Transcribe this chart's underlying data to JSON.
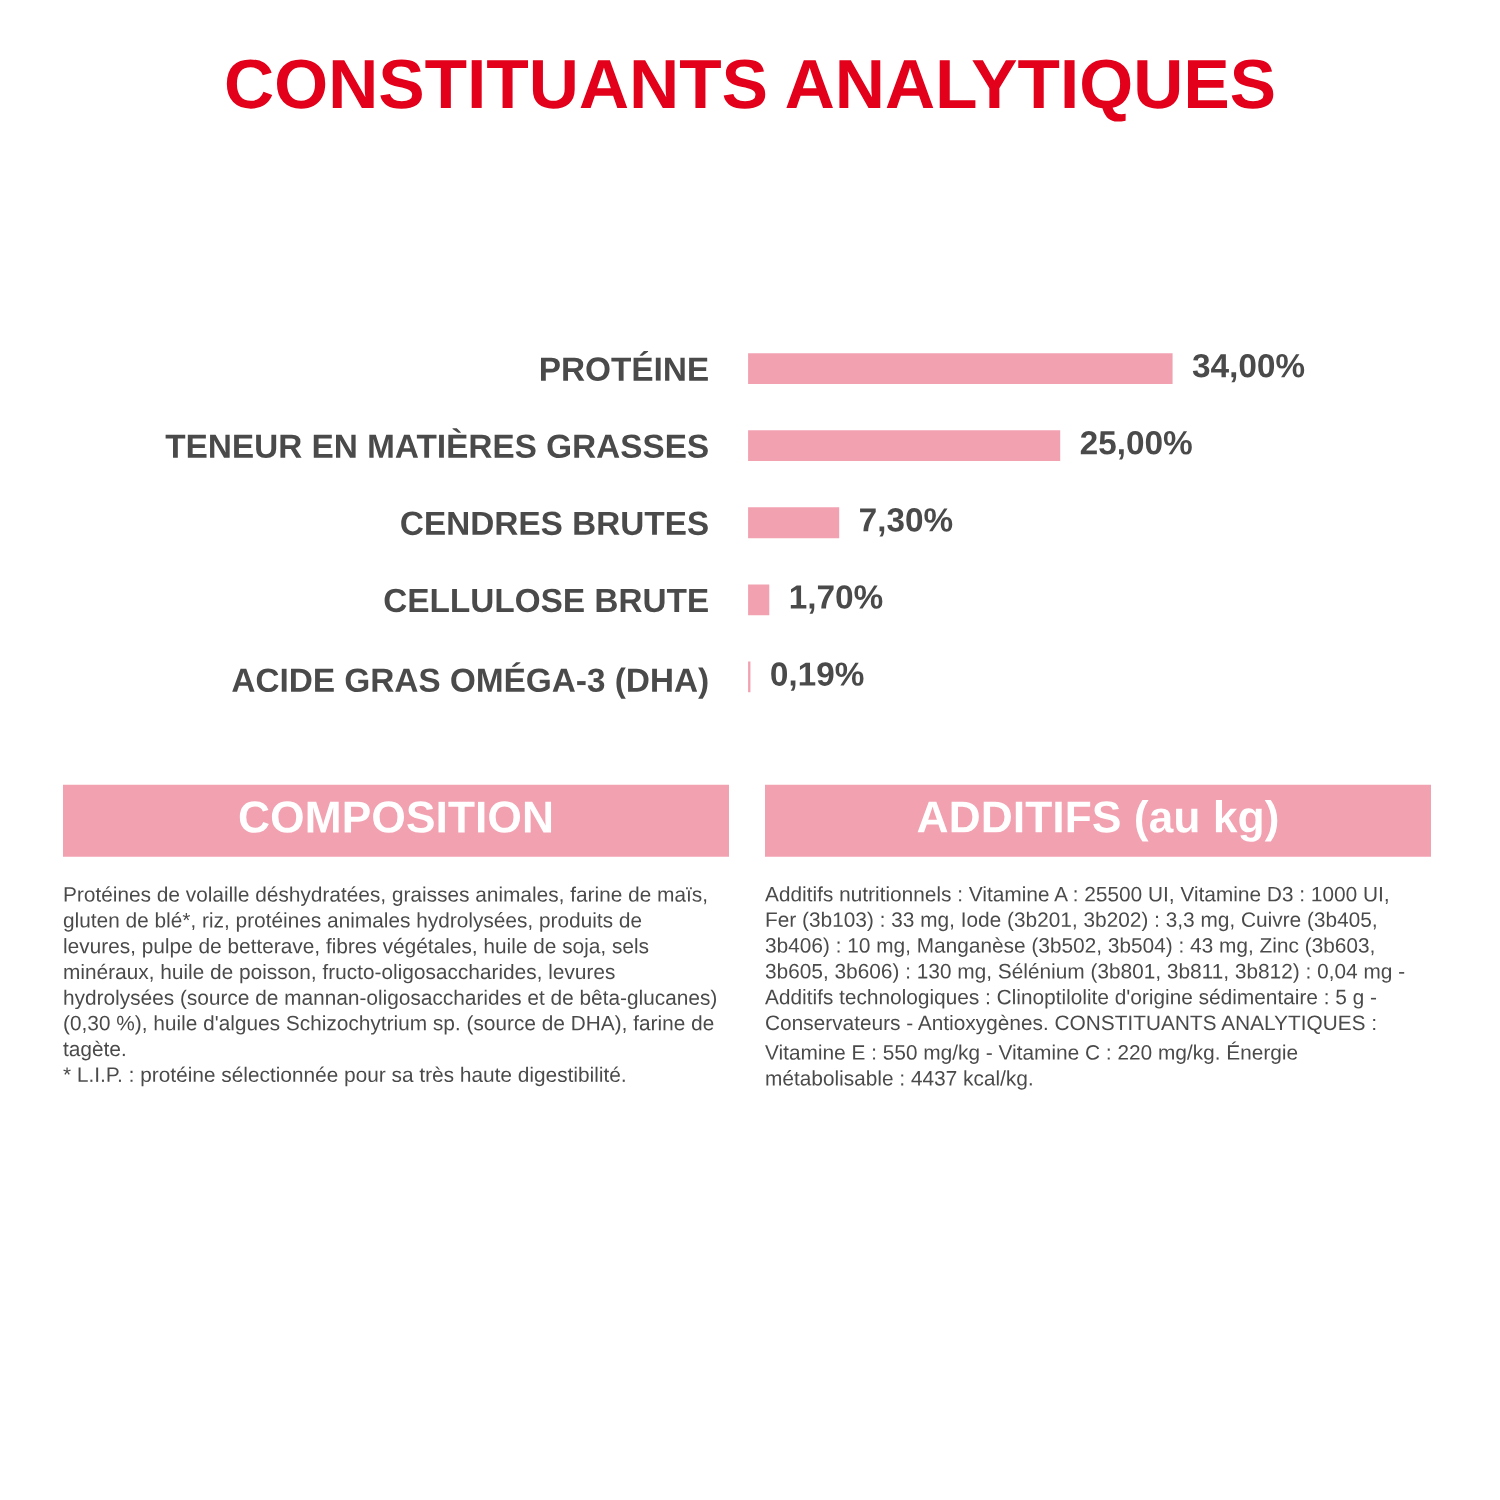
{
  "chart_data": [
    {
      "type": "bar",
      "orientation": "horizontal",
      "title": "CONSTITUANTS ANALYTIQUES",
      "categories": [
        "PROTÉINE",
        "TENEUR EN MATIÈRES GRASSES",
        "CENDRES BRUTES",
        "CELLULOSE BRUTE",
        "ACIDE GRAS OMÉGA-3 (DHA)"
      ],
      "values": [
        34.0,
        25.0,
        7.3,
        1.7,
        0.19
      ],
      "color": "#f2a1b0",
      "value_labels": [
        "34,00%",
        "25,00%",
        "7,30%",
        "1,70%",
        "0,19%"
      ]
    },
    {
      "type": "other",
      "title": "COMPOSITION",
      "annotations": [
        "Protéines de volaille déshydratées, graisses animales, farine de maïs, gluten de blé*, riz, protéines animales hydrolysées, produits de levures, pulpe de betterave, fibres végétales, huile de soja, sels minéraux, huile de poisson, fructo-oligosaccharides, levures hydrolysées (source de mannan-oligosaccharides et de bêta-glucanes) (0,30 %), huile d'algues Schizochytrium sp. (source de DHA), farine de tagète.",
        "* L.I.P. : protéine sélectionnée pour sa très haute digestibilité."
      ]
    },
    {
      "type": "other",
      "title": "ADDITIFS (au kg)",
      "annotations": [
        "Additifs nutritionnels : Vitamine A : 25500 UI, Vitamine D3 : 1000 UI, Fer (3b103) : 33 mg, Iode (3b201, 3b202) : 3,3 mg, Cuivre (3b405, 3b406) : 10 mg, Manganèse (3b502, 3b504) : 43 mg, Zinc (3b603, 3b605, 3b606) : 130 mg, Sélénium (3b801, 3b811, 3b812) : 0,04 mg - Additifs technologiques : Clinoptilolite d'origine sédimentaire : 5 g - Conservateurs - Antioxygènes. CONSTITUANTS ANALYTIQUES : Vitamine E : 550 mg/kg - Vitamine C : 220 mg/kg. Énergie métabolisable : 4437 kcal/kg."
      ]
    }
  ]
}
